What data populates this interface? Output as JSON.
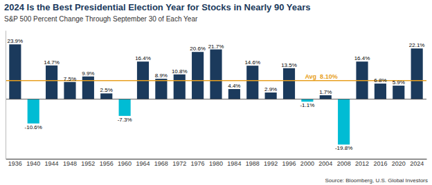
{
  "chart_data": {
    "type": "bar",
    "title": "2024 Is the Best Presidential Election Year for Stocks in Nearly 90 Years",
    "subtitle": "S&P 500 Percent Change Through September 30 of Each Year",
    "source": "Source: Bloomberg, U.S. Global Investors",
    "categories": [
      "1936",
      "1940",
      "1944",
      "1948",
      "1952",
      "1956",
      "1960",
      "1964",
      "1968",
      "1972",
      "1976",
      "1980",
      "1984",
      "1988",
      "1992",
      "1996",
      "2000",
      "2004",
      "2008",
      "2012",
      "2016",
      "2020",
      "2024"
    ],
    "values": [
      23.9,
      -10.6,
      14.7,
      7.5,
      9.9,
      2.5,
      -7.3,
      16.4,
      8.9,
      10.8,
      20.6,
      21.7,
      4.4,
      14.6,
      2.9,
      13.5,
      -1.1,
      1.7,
      -19.8,
      16.4,
      6.8,
      5.9,
      22.1
    ],
    "value_labels": [
      "23.9%",
      "-10.6%",
      "14.7%",
      "7.5%",
      "9.9%",
      "2.5%",
      "-7.3%",
      "16.4%",
      "8.9%",
      "10.8%",
      "20.6%",
      "21.7%",
      "4.4%",
      "14.6%",
      "2.9%",
      "13.5%",
      "-1.1%",
      "1.7%",
      "-19.8%",
      "16.4%",
      "6.8%",
      "5.9%",
      "22.1%"
    ],
    "colors": [
      "#1b3a5c",
      "#00bcd4",
      "#1b3a5c",
      "#1b3a5c",
      "#1b3a5c",
      "#1b3a5c",
      "#00bcd4",
      "#1b3a5c",
      "#1b3a5c",
      "#1b3a5c",
      "#1b3a5c",
      "#1b3a5c",
      "#1b3a5c",
      "#1b3a5c",
      "#1b3a5c",
      "#1b3a5c",
      "#00bcd4",
      "#1b3a5c",
      "#00bcd4",
      "#1b3a5c",
      "#1b3a5c",
      "#1b3a5c",
      "#1b3a5c"
    ],
    "average": {
      "value": 8.1,
      "label": "Avg  8.10%",
      "color": "#e8a020"
    },
    "ylim": [
      -26,
      30
    ],
    "data_labels": true,
    "tick_labels": "x",
    "grid": false
  }
}
